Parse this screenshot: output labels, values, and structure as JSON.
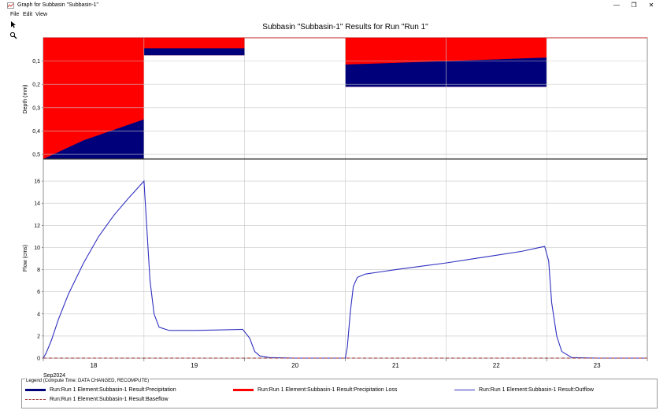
{
  "window": {
    "title": "Graph for Subbasin \"Subbasin-1\"",
    "menus": [
      "File",
      "Edit",
      "View"
    ],
    "controls": [
      "minimize",
      "maximize",
      "close"
    ],
    "tools": [
      "arrow-pointer-icon",
      "zoom-magnifier-icon"
    ]
  },
  "colors": {
    "precipitation": "#00007a",
    "precip_loss": "#ff0000",
    "outflow": "#3030c0",
    "baseflow": "#9c2b2b"
  },
  "chart_data": {
    "title": "Subbasin \"Subbasin-1\" Results for Run \"Run 1\"",
    "x_tick_labels": [
      "18",
      "19",
      "20",
      "21",
      "22",
      "23"
    ],
    "x_sublabel": "Sep2024",
    "xlim": [
      0,
      6
    ],
    "panels": [
      {
        "type": "area",
        "ylabel": "Depth (mm)",
        "inverted": true,
        "ylim": [
          0,
          0.52
        ],
        "ytick_labels": [
          "0,1",
          "0,2",
          "0,3",
          "0,4",
          "0,5"
        ],
        "ytick_values": [
          0.1,
          0.2,
          0.3,
          0.4,
          0.5
        ],
        "grid": true,
        "series": [
          {
            "name": "Run:Run 1 Element:Subbasin-1 Result:Precipitation",
            "bars": [
              {
                "x0": 0,
                "x1": 1,
                "value": 0.52
              },
              {
                "x0": 1,
                "x1": 2,
                "value": 0.075
              },
              {
                "x0": 3,
                "x1": 5,
                "value": 0.21
              }
            ]
          },
          {
            "name": "Run:Run 1 Element:Subbasin-1 Result:Precipitation Loss",
            "curves": [
              {
                "x": [
                  0,
                  0.1,
                  0.2,
                  0.3,
                  0.4,
                  0.5,
                  0.6,
                  0.7,
                  0.8,
                  0.9,
                  1.0
                ],
                "y": [
                  0.52,
                  0.5,
                  0.48,
                  0.46,
                  0.44,
                  0.425,
                  0.41,
                  0.395,
                  0.38,
                  0.365,
                  0.35
                ]
              },
              {
                "x": [
                  1,
                  2
                ],
                "y": [
                  0.045,
                  0.045
                ]
              },
              {
                "x": [
                  3,
                  5
                ],
                "y": [
                  0.115,
                  0.085
                ]
              }
            ]
          }
        ]
      },
      {
        "type": "line",
        "ylabel": "Flow (cms)",
        "ylim": [
          0,
          18
        ],
        "ytick_values": [
          0,
          2,
          4,
          6,
          8,
          10,
          12,
          14,
          16
        ],
        "ytick_labels": [
          "0",
          "2",
          "4",
          "6",
          "8",
          "10",
          "12",
          "14",
          "16"
        ],
        "grid": true,
        "series": [
          {
            "name": "Run:Run 1 Element:Subbasin-1 Result:Outflow",
            "x": [
              0,
              0.03,
              0.08,
              0.15,
              0.25,
              0.4,
              0.55,
              0.7,
              0.85,
              1.0,
              1.03,
              1.06,
              1.1,
              1.15,
              1.25,
              1.5,
              1.75,
              1.98,
              2.05,
              2.1,
              2.15,
              2.25,
              2.5,
              3.0,
              3.02,
              3.05,
              3.08,
              3.12,
              3.2,
              3.35,
              3.5,
              3.75,
              4.0,
              4.25,
              4.5,
              4.75,
              4.98,
              5.02,
              5.05,
              5.1,
              5.15,
              5.25,
              5.5,
              6.0
            ],
            "y": [
              0,
              0.5,
              1.6,
              3.5,
              5.8,
              8.6,
              11.0,
              12.9,
              14.5,
              16.0,
              11.5,
              7.0,
              4.0,
              2.8,
              2.5,
              2.5,
              2.55,
              2.6,
              1.8,
              0.6,
              0.2,
              0.05,
              0,
              0,
              1.0,
              4.2,
              6.5,
              7.3,
              7.6,
              7.8,
              8.0,
              8.3,
              8.6,
              8.95,
              9.3,
              9.65,
              10.1,
              8.8,
              5.0,
              2.0,
              0.6,
              0.05,
              0,
              0
            ]
          },
          {
            "name": "Run:Run 1 Element:Subbasin-1 Result:Baseflow",
            "x": [
              0,
              6
            ],
            "y": [
              0,
              0
            ]
          }
        ]
      }
    ],
    "legend": {
      "header": "Legend (Compute Time: DATA CHANGED, RECOMPUTE)",
      "placement": "bottom",
      "items": [
        {
          "label": "Run:Run 1 Element:Subbasin-1 Result:Precipitation",
          "style": "thick",
          "color": "#00007a"
        },
        {
          "label": "Run:Run 1 Element:Subbasin-1 Result:Precipitation Loss",
          "style": "thick",
          "color": "#ff0000"
        },
        {
          "label": "Run:Run 1 Element:Subbasin-1 Result:Outflow",
          "style": "thin",
          "color": "#3030c0"
        },
        {
          "label": "Run:Run 1 Element:Subbasin-1 Result:Baseflow",
          "style": "dashed",
          "color": "#9c2b2b"
        }
      ]
    }
  }
}
